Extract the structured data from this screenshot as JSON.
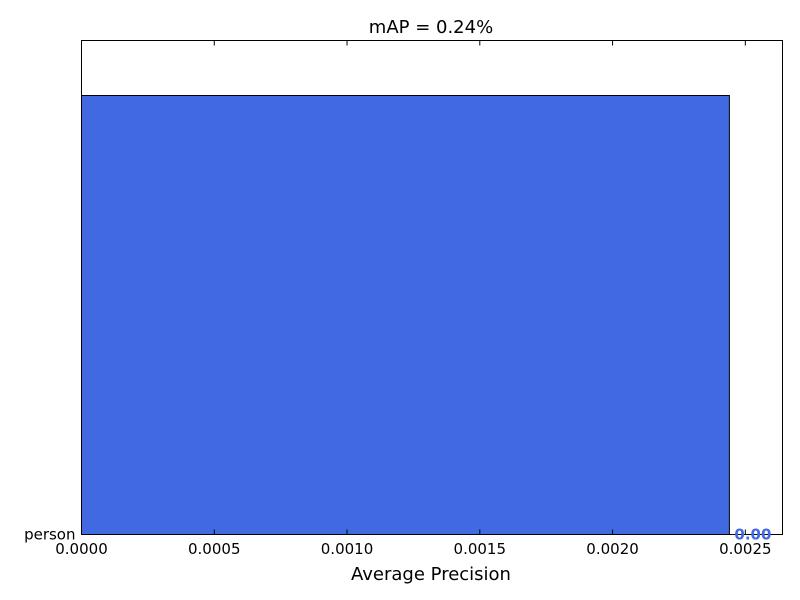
{
  "chart_data": {
    "type": "bar",
    "orientation": "horizontal",
    "title": "mAP = 0.24%",
    "xlabel": "Average Precision",
    "ylabel": "",
    "categories": [
      "person"
    ],
    "values": [
      0.00244
    ],
    "value_labels": [
      "0.00"
    ],
    "xlim": [
      0,
      0.00264
    ],
    "xticks": [
      0.0,
      0.0005,
      0.001,
      0.0015,
      0.002,
      0.0025
    ],
    "xtick_labels": [
      "0.0000",
      "0.0005",
      "0.0010",
      "0.0015",
      "0.0020",
      "0.0025"
    ],
    "grid": false,
    "legend": "none",
    "bar_color": "#4169e1",
    "label_color": "#4169e1"
  }
}
